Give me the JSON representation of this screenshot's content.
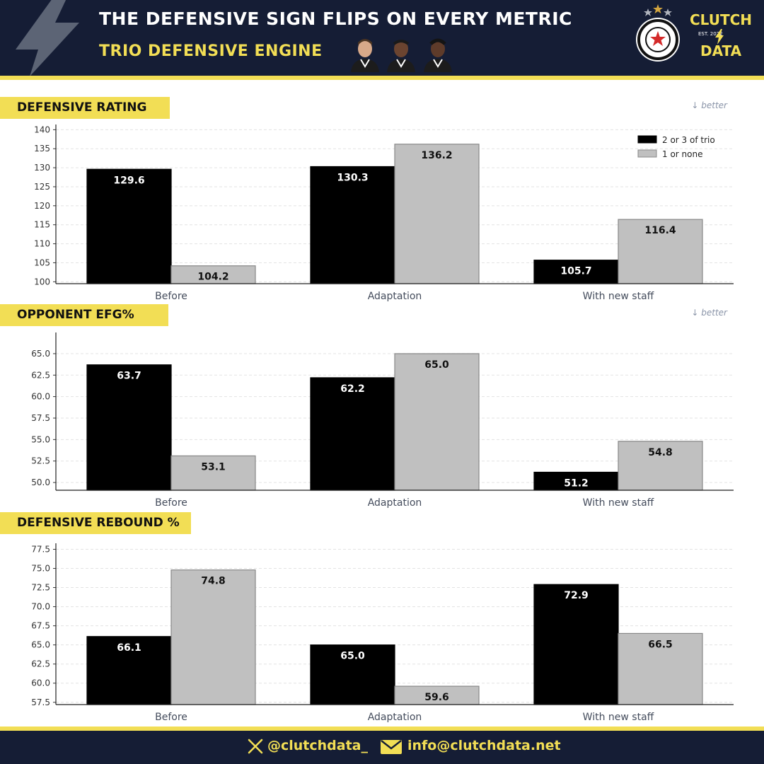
{
  "header": {
    "title": "THE DEFENSIVE SIGN FLIPS ON EVERY METRIC",
    "subtitle": "TRIO DEFENSIVE ENGINE",
    "brand_top": "CLUTCH",
    "brand_est": "EST. 2022",
    "brand_bottom": "DATA",
    "colors": {
      "navy": "#151d35",
      "yellow": "#f2de55"
    }
  },
  "footer": {
    "handle": "@clutchdata_",
    "email": "info@clutchdata.net"
  },
  "legend": [
    "2 or 3 of trio",
    "1 or none"
  ],
  "chart_data": [
    {
      "type": "bar",
      "title": "DEFENSIVE RATING",
      "note": "↓ better",
      "categories": [
        "Before",
        "Adaptation",
        "With new staff"
      ],
      "series": [
        {
          "name": "2 or 3 of trio",
          "color": "#000000",
          "values": [
            129.6,
            130.3,
            105.7
          ]
        },
        {
          "name": "1 or none",
          "color": "#c0c0c0",
          "values": [
            104.2,
            136.2,
            116.4
          ]
        }
      ],
      "ylim": [
        99.5,
        141
      ],
      "yticks": [
        100,
        105,
        110,
        115,
        120,
        125,
        130,
        135,
        140
      ],
      "ytick_labels": [
        "100",
        "105",
        "110",
        "115",
        "120",
        "125",
        "130",
        "135",
        "140"
      ],
      "legend_position": "top-right",
      "grid": true
    },
    {
      "type": "bar",
      "title": "OPPONENT EFG%",
      "note": "↓ better",
      "categories": [
        "Before",
        "Adaptation",
        "With new staff"
      ],
      "series": [
        {
          "name": "2 or 3 of trio",
          "color": "#000000",
          "values": [
            63.7,
            62.2,
            51.2
          ]
        },
        {
          "name": "1 or none",
          "color": "#c0c0c0",
          "values": [
            53.1,
            65.0,
            54.8
          ]
        }
      ],
      "ylim": [
        49.1,
        67.3
      ],
      "yticks": [
        50.0,
        52.5,
        55.0,
        57.5,
        60.0,
        62.5,
        65.0
      ],
      "ytick_labels": [
        "50.0",
        "52.5",
        "55.0",
        "57.5",
        "60.0",
        "62.5",
        "65.0"
      ],
      "grid": true
    },
    {
      "type": "bar",
      "title": "DEFENSIVE REBOUND %",
      "note": "",
      "categories": [
        "Before",
        "Adaptation",
        "With new staff"
      ],
      "series": [
        {
          "name": "2 or 3 of trio",
          "color": "#000000",
          "values": [
            66.1,
            65.0,
            72.9
          ]
        },
        {
          "name": "1 or none",
          "color": "#c0c0c0",
          "values": [
            74.8,
            59.6,
            66.5
          ]
        }
      ],
      "ylim": [
        57.2,
        78.1
      ],
      "yticks": [
        57.5,
        60.0,
        62.5,
        65.0,
        67.5,
        70.0,
        72.5,
        75.0,
        77.5
      ],
      "ytick_labels": [
        "57.5",
        "60.0",
        "62.5",
        "65.0",
        "67.5",
        "70.0",
        "72.5",
        "75.0",
        "77.5"
      ],
      "grid": true
    }
  ]
}
